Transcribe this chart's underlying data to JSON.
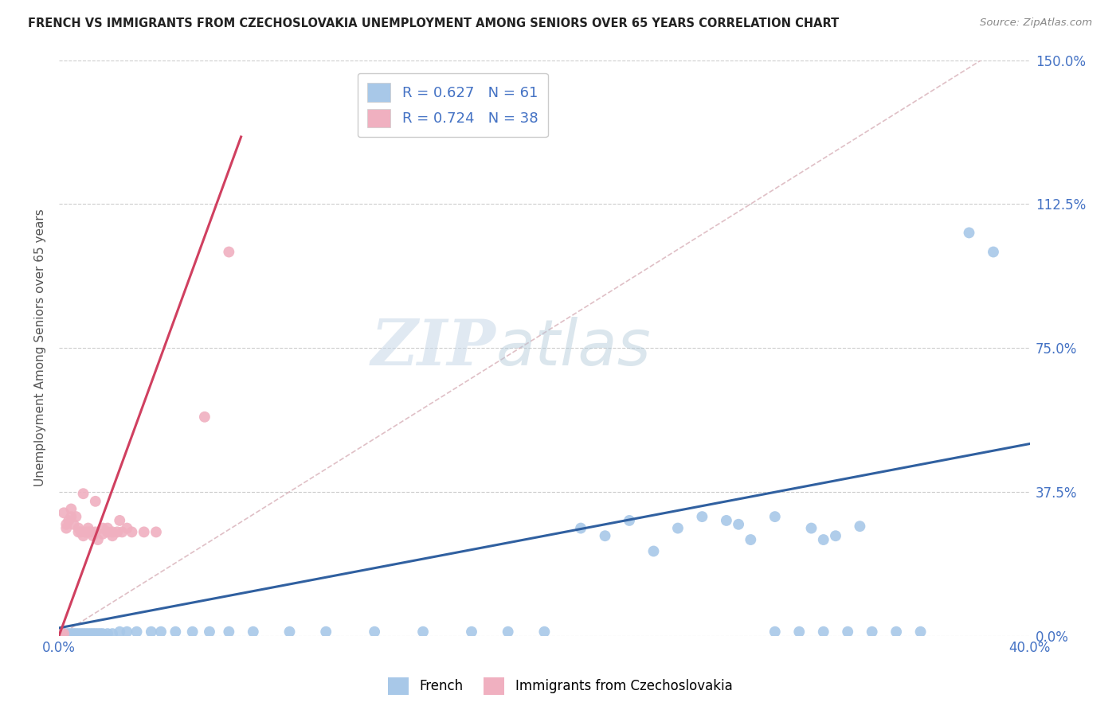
{
  "title": "FRENCH VS IMMIGRANTS FROM CZECHOSLOVAKIA UNEMPLOYMENT AMONG SENIORS OVER 65 YEARS CORRELATION CHART",
  "source": "Source: ZipAtlas.com",
  "ylabel": "Unemployment Among Seniors over 65 years",
  "xlim": [
    0.0,
    0.4
  ],
  "ylim": [
    0.0,
    1.5
  ],
  "ytick_labels": [
    "0.0%",
    "37.5%",
    "75.0%",
    "112.5%",
    "150.0%"
  ],
  "ytick_vals": [
    0.0,
    0.375,
    0.75,
    1.125,
    1.5
  ],
  "xtick_labels": [
    "0.0%",
    "40.0%"
  ],
  "xtick_vals": [
    0.0,
    0.4
  ],
  "french_R": 0.627,
  "french_N": 61,
  "czech_R": 0.724,
  "czech_N": 38,
  "french_color": "#a8c8e8",
  "french_line_color": "#3060a0",
  "czech_color": "#f0b0c0",
  "czech_line_color": "#d04060",
  "legend_label_french": "French",
  "legend_label_czech": "Immigrants from Czechoslovakia",
  "watermark_zip": "ZIP",
  "watermark_atlas": "atlas",
  "background_color": "#ffffff",
  "french_scatter_x": [
    0.001,
    0.001,
    0.002,
    0.003,
    0.004,
    0.005,
    0.006,
    0.007,
    0.008,
    0.009,
    0.01,
    0.011,
    0.012,
    0.013,
    0.014,
    0.015,
    0.016,
    0.017,
    0.018,
    0.02,
    0.022,
    0.025,
    0.028,
    0.032,
    0.038,
    0.042,
    0.048,
    0.055,
    0.062,
    0.07,
    0.08,
    0.095,
    0.11,
    0.13,
    0.15,
    0.17,
    0.185,
    0.2,
    0.215,
    0.225,
    0.235,
    0.245,
    0.255,
    0.265,
    0.275,
    0.285,
    0.295,
    0.305,
    0.315,
    0.325,
    0.335,
    0.345,
    0.355,
    0.295,
    0.31,
    0.32,
    0.28,
    0.33,
    0.315,
    0.375,
    0.385
  ],
  "french_scatter_y": [
    0.005,
    0.005,
    0.005,
    0.005,
    0.005,
    0.005,
    0.005,
    0.005,
    0.005,
    0.005,
    0.005,
    0.005,
    0.005,
    0.005,
    0.005,
    0.005,
    0.005,
    0.005,
    0.005,
    0.005,
    0.005,
    0.01,
    0.01,
    0.01,
    0.01,
    0.01,
    0.01,
    0.01,
    0.01,
    0.01,
    0.01,
    0.01,
    0.01,
    0.01,
    0.01,
    0.01,
    0.01,
    0.01,
    0.28,
    0.26,
    0.3,
    0.22,
    0.28,
    0.31,
    0.3,
    0.25,
    0.01,
    0.01,
    0.01,
    0.01,
    0.01,
    0.01,
    0.01,
    0.31,
    0.28,
    0.26,
    0.29,
    0.285,
    0.25,
    1.05,
    1.0
  ],
  "czech_scatter_x": [
    0.001,
    0.002,
    0.003,
    0.004,
    0.005,
    0.006,
    0.007,
    0.008,
    0.009,
    0.01,
    0.011,
    0.012,
    0.013,
    0.014,
    0.015,
    0.016,
    0.018,
    0.02,
    0.022,
    0.024,
    0.026,
    0.03,
    0.035,
    0.04,
    0.002,
    0.003,
    0.005,
    0.008,
    0.012,
    0.018,
    0.022,
    0.028,
    0.01,
    0.015,
    0.02,
    0.025,
    0.06,
    0.07
  ],
  "czech_scatter_y": [
    0.005,
    0.005,
    0.28,
    0.3,
    0.31,
    0.29,
    0.31,
    0.28,
    0.27,
    0.26,
    0.27,
    0.28,
    0.27,
    0.26,
    0.27,
    0.25,
    0.265,
    0.27,
    0.26,
    0.27,
    0.27,
    0.27,
    0.27,
    0.27,
    0.32,
    0.29,
    0.33,
    0.27,
    0.27,
    0.28,
    0.27,
    0.28,
    0.37,
    0.35,
    0.28,
    0.3,
    0.57,
    1.0
  ],
  "french_line_x": [
    0.0,
    0.4
  ],
  "french_line_y": [
    0.02,
    0.5
  ],
  "czech_line_x": [
    0.0,
    0.075
  ],
  "czech_line_y": [
    0.0,
    1.3
  ],
  "dashed_line_x": [
    0.0,
    0.38
  ],
  "dashed_line_y": [
    0.0,
    1.5
  ]
}
